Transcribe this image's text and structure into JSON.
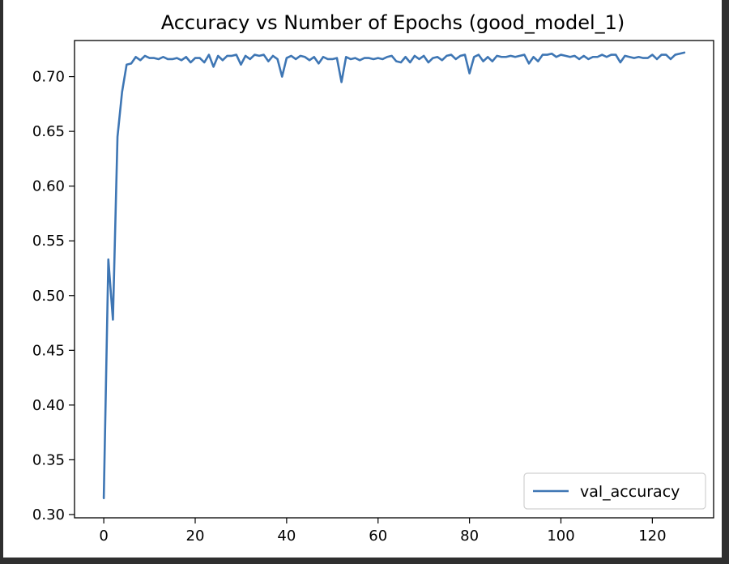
{
  "chart_data": {
    "type": "line",
    "title": "Accuracy vs Number of Epochs (good_model_1)",
    "xlabel": "",
    "ylabel": "",
    "xlim": [
      -6.4,
      133.4
    ],
    "ylim": [
      0.297,
      0.733
    ],
    "xticks": [
      0,
      20,
      40,
      60,
      80,
      100,
      120
    ],
    "yticks": [
      0.3,
      0.35,
      0.4,
      0.45,
      0.5,
      0.55,
      0.6,
      0.65,
      0.7
    ],
    "ytick_labels": [
      "0.30",
      "0.35",
      "0.40",
      "0.45",
      "0.50",
      "0.55",
      "0.60",
      "0.65",
      "0.70"
    ],
    "grid": false,
    "legend": {
      "position": "lower-right",
      "entries": [
        "val_accuracy"
      ]
    },
    "series": [
      {
        "name": "val_accuracy",
        "color": "#3e76b4",
        "x": [
          0,
          1,
          2,
          3,
          4,
          5,
          6,
          7,
          8,
          9,
          10,
          11,
          12,
          13,
          14,
          15,
          16,
          17,
          18,
          19,
          20,
          21,
          22,
          23,
          24,
          25,
          26,
          27,
          28,
          29,
          30,
          31,
          32,
          33,
          34,
          35,
          36,
          37,
          38,
          39,
          40,
          41,
          42,
          43,
          44,
          45,
          46,
          47,
          48,
          49,
          50,
          51,
          52,
          53,
          54,
          55,
          56,
          57,
          58,
          59,
          60,
          61,
          62,
          63,
          64,
          65,
          66,
          67,
          68,
          69,
          70,
          71,
          72,
          73,
          74,
          75,
          76,
          77,
          78,
          79,
          80,
          81,
          82,
          83,
          84,
          85,
          86,
          87,
          88,
          89,
          90,
          91,
          92,
          93,
          94,
          95,
          96,
          97,
          98,
          99,
          100,
          101,
          102,
          103,
          104,
          105,
          106,
          107,
          108,
          109,
          110,
          111,
          112,
          113,
          114,
          115,
          116,
          117,
          118,
          119,
          120,
          121,
          122,
          123,
          124,
          125,
          126,
          127
        ],
        "values": [
          0.315,
          0.533,
          0.478,
          0.645,
          0.686,
          0.711,
          0.712,
          0.718,
          0.715,
          0.719,
          0.717,
          0.717,
          0.716,
          0.718,
          0.716,
          0.716,
          0.717,
          0.715,
          0.718,
          0.713,
          0.717,
          0.717,
          0.713,
          0.72,
          0.709,
          0.719,
          0.715,
          0.719,
          0.719,
          0.72,
          0.711,
          0.719,
          0.716,
          0.72,
          0.719,
          0.72,
          0.714,
          0.719,
          0.716,
          0.7,
          0.717,
          0.719,
          0.716,
          0.719,
          0.718,
          0.715,
          0.718,
          0.712,
          0.718,
          0.716,
          0.716,
          0.717,
          0.695,
          0.718,
          0.716,
          0.717,
          0.715,
          0.717,
          0.717,
          0.716,
          0.717,
          0.716,
          0.718,
          0.719,
          0.714,
          0.713,
          0.718,
          0.713,
          0.719,
          0.716,
          0.719,
          0.713,
          0.717,
          0.718,
          0.715,
          0.719,
          0.72,
          0.716,
          0.719,
          0.72,
          0.703,
          0.718,
          0.72,
          0.714,
          0.718,
          0.714,
          0.719,
          0.718,
          0.718,
          0.719,
          0.718,
          0.719,
          0.72,
          0.712,
          0.718,
          0.714,
          0.72,
          0.72,
          0.721,
          0.718,
          0.72,
          0.719,
          0.718,
          0.719,
          0.716,
          0.719,
          0.716,
          0.718,
          0.718,
          0.72,
          0.718,
          0.72,
          0.72,
          0.713,
          0.719,
          0.718,
          0.717,
          0.718,
          0.717,
          0.717,
          0.72,
          0.716,
          0.72,
          0.72,
          0.716,
          0.72,
          0.721,
          0.722
        ]
      }
    ]
  }
}
